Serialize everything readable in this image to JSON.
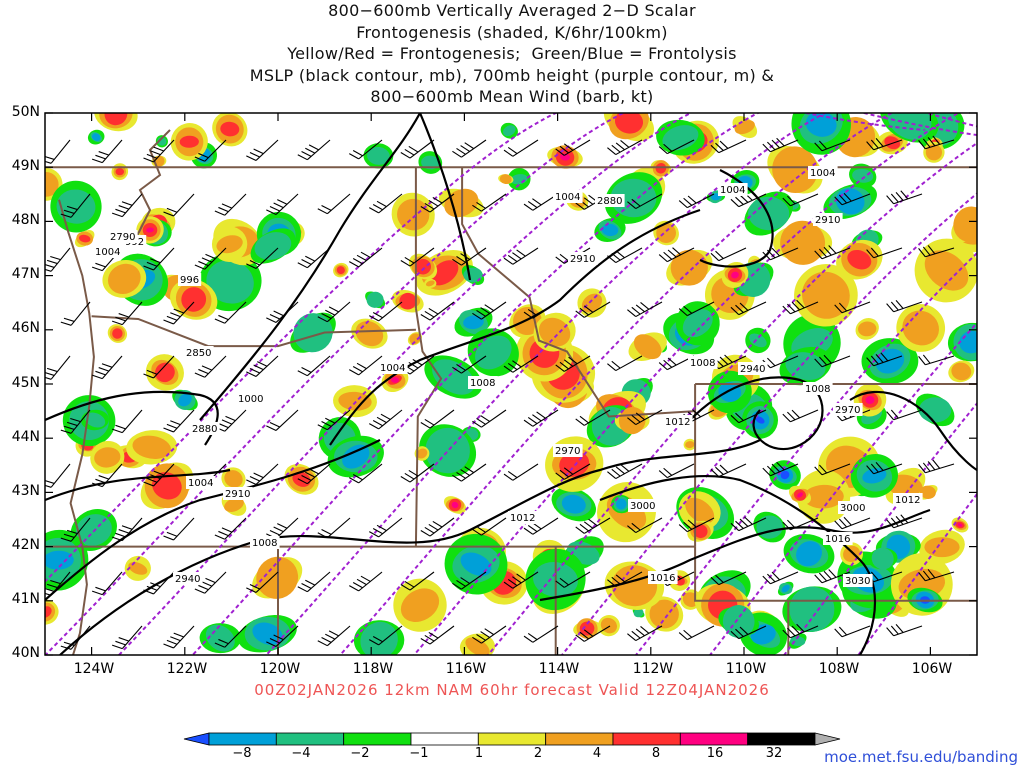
{
  "title_lines": [
    "800−600mb Vertically Averaged 2−D Scalar",
    "Frontogenesis (shaded, K/6hr/100km)",
    "Yellow/Red = Frontogenesis;  Green/Blue = Frontolysis",
    "MSLP (black contour, mb), 700mb height (purple contour, m) &",
    "800−600mb Mean Wind (barb, kt)"
  ],
  "forecast_line": "00Z02JAN2026 12km NAM 60hr forecast Valid 12Z04JAN2026",
  "credit": "moe.met.fsu.edu/banding",
  "map": {
    "lon_range": [
      -125,
      -105
    ],
    "lat_range": [
      40,
      50
    ],
    "lat_labels": [
      "50N",
      "49N",
      "48N",
      "47N",
      "46N",
      "45N",
      "44N",
      "43N",
      "42N",
      "41N",
      "40N"
    ],
    "lon_labels": [
      "124W",
      "122W",
      "120W",
      "118W",
      "116W",
      "114W",
      "112W",
      "110W",
      "108W",
      "106W"
    ],
    "mslp_labels": [
      "1004",
      "1004",
      "1004",
      "996",
      "992",
      "1004",
      "1000",
      "1008",
      "1008",
      "1012",
      "1012",
      "1016",
      "1016",
      "1004",
      "1008",
      "1008",
      "1012",
      "1004"
    ],
    "height_labels": [
      "2880",
      "2910",
      "2850",
      "2880",
      "2910",
      "2970",
      "3000",
      "2940",
      "2940",
      "2970",
      "3000",
      "3030",
      "2910",
      "2790"
    ]
  },
  "colorbar": {
    "levels": [
      "−8",
      "−4",
      "−2",
      "−1",
      "1",
      "2",
      "4",
      "8",
      "16",
      "32"
    ],
    "colors": [
      "#1a4fff",
      "#00a0d8",
      "#20c080",
      "#10e010",
      "#ffffff",
      "#e8e830",
      "#f0a020",
      "#ff3030",
      "#ff0080",
      "#000000",
      "#b0b0b0"
    ]
  }
}
